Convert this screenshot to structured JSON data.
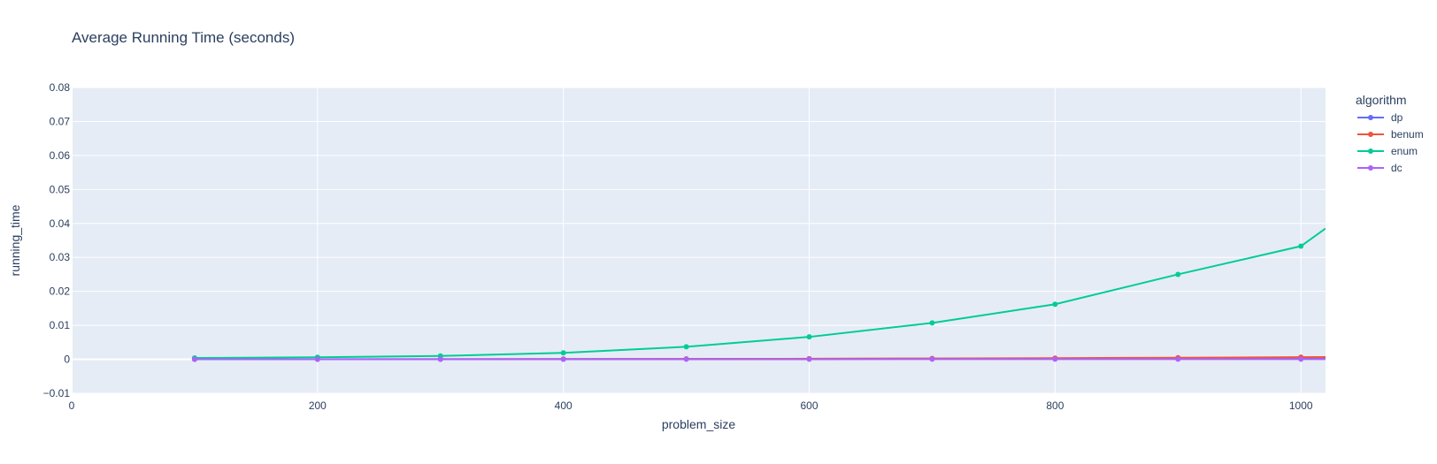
{
  "chart_data": {
    "type": "line",
    "title": "Average Running Time (seconds)",
    "xlabel": "problem_size",
    "ylabel": "running_time",
    "xlim": [
      0,
      1020
    ],
    "ylim": [
      -0.01,
      0.08
    ],
    "x_ticks": [
      0,
      200,
      400,
      600,
      800,
      1000
    ],
    "x_tick_labels": [
      "0",
      "200",
      "400",
      "600",
      "800",
      "1000"
    ],
    "y_ticks": [
      -0.01,
      0,
      0.01,
      0.02,
      0.03,
      0.04,
      0.05,
      0.06,
      0.07,
      0.08
    ],
    "y_tick_labels": [
      "−0.01",
      "0",
      "0.01",
      "0.02",
      "0.03",
      "0.04",
      "0.05",
      "0.06",
      "0.07",
      "0.08"
    ],
    "grid": true,
    "legend_title": "algorithm",
    "legend_position": "right",
    "x": [
      100,
      200,
      300,
      400,
      500,
      600,
      700,
      800,
      900,
      1000
    ],
    "series": [
      {
        "name": "dp",
        "color": "#636efa",
        "values": [
          1e-05,
          3e-05,
          5e-05,
          8e-05,
          0.00011,
          0.00014,
          0.00018,
          0.00022,
          0.00026,
          0.0003
        ],
        "extends_to": {
          "x": 1020,
          "y": 0.00031
        }
      },
      {
        "name": "benum",
        "color": "#ef553b",
        "values": [
          1e-05,
          2e-05,
          4e-05,
          7e-05,
          0.00011,
          0.00017,
          0.00025,
          0.00035,
          0.00048,
          0.00062
        ],
        "extends_to": {
          "x": 1020,
          "y": 0.00065
        }
      },
      {
        "name": "enum",
        "color": "#00cc96",
        "values": [
          0.0004,
          0.0006,
          0.001,
          0.0019,
          0.0037,
          0.0066,
          0.0107,
          0.0162,
          0.025,
          0.0333
        ],
        "extends_to": {
          "x": 1020,
          "y": 0.0385
        }
      },
      {
        "name": "dc",
        "color": "#ab63fa",
        "values": [
          1e-05,
          1e-05,
          2e-05,
          2e-05,
          3e-05,
          3e-05,
          4e-05,
          4e-05,
          5e-05,
          5e-05
        ],
        "extends_to": {
          "x": 1020,
          "y": 5e-05
        }
      }
    ]
  },
  "colors": {
    "plot_bg": "#e5ecf6",
    "grid": "#ffffff",
    "text": "#2a3f5f"
  }
}
